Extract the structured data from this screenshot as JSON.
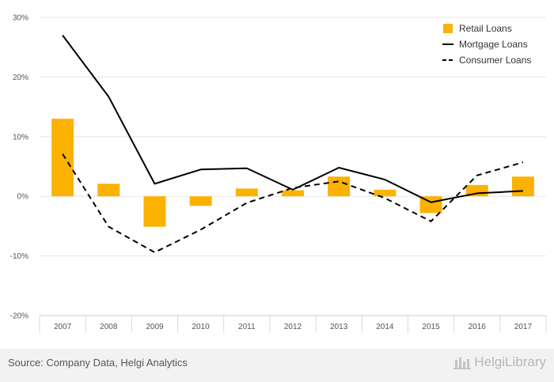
{
  "chart_data": {
    "type": "bar",
    "categories": [
      "2007",
      "2008",
      "2009",
      "2010",
      "2011",
      "2012",
      "2013",
      "2014",
      "2015",
      "2016",
      "2017"
    ],
    "y_ticks": [
      "-20%",
      "-10%",
      "0%",
      "10%",
      "20%",
      "30%"
    ],
    "ylim": [
      -20,
      30
    ],
    "grid": true,
    "legend_position": "top-right",
    "series": [
      {
        "name": "Retail Loans",
        "kind": "bar",
        "color": "#fbb200",
        "values": [
          13.0,
          2.1,
          -5.1,
          -1.6,
          1.3,
          1.0,
          3.3,
          1.1,
          -2.8,
          1.9,
          3.3
        ]
      },
      {
        "name": "Mortgage Loans",
        "kind": "line",
        "style": "solid",
        "color": "#000000",
        "values": [
          27.0,
          16.7,
          2.1,
          4.5,
          4.7,
          1.1,
          4.8,
          2.8,
          -1.0,
          0.5,
          0.9
        ]
      },
      {
        "name": "Consumer Loans",
        "kind": "line",
        "style": "dashed",
        "color": "#000000",
        "values": [
          7.1,
          -5.1,
          -9.4,
          -5.6,
          -1.1,
          1.4,
          2.5,
          -0.3,
          -4.2,
          3.5,
          5.7
        ]
      }
    ]
  },
  "footer": {
    "source": "Source: Company Data, Helgi Analytics",
    "brand": "HelgiLibrary"
  }
}
